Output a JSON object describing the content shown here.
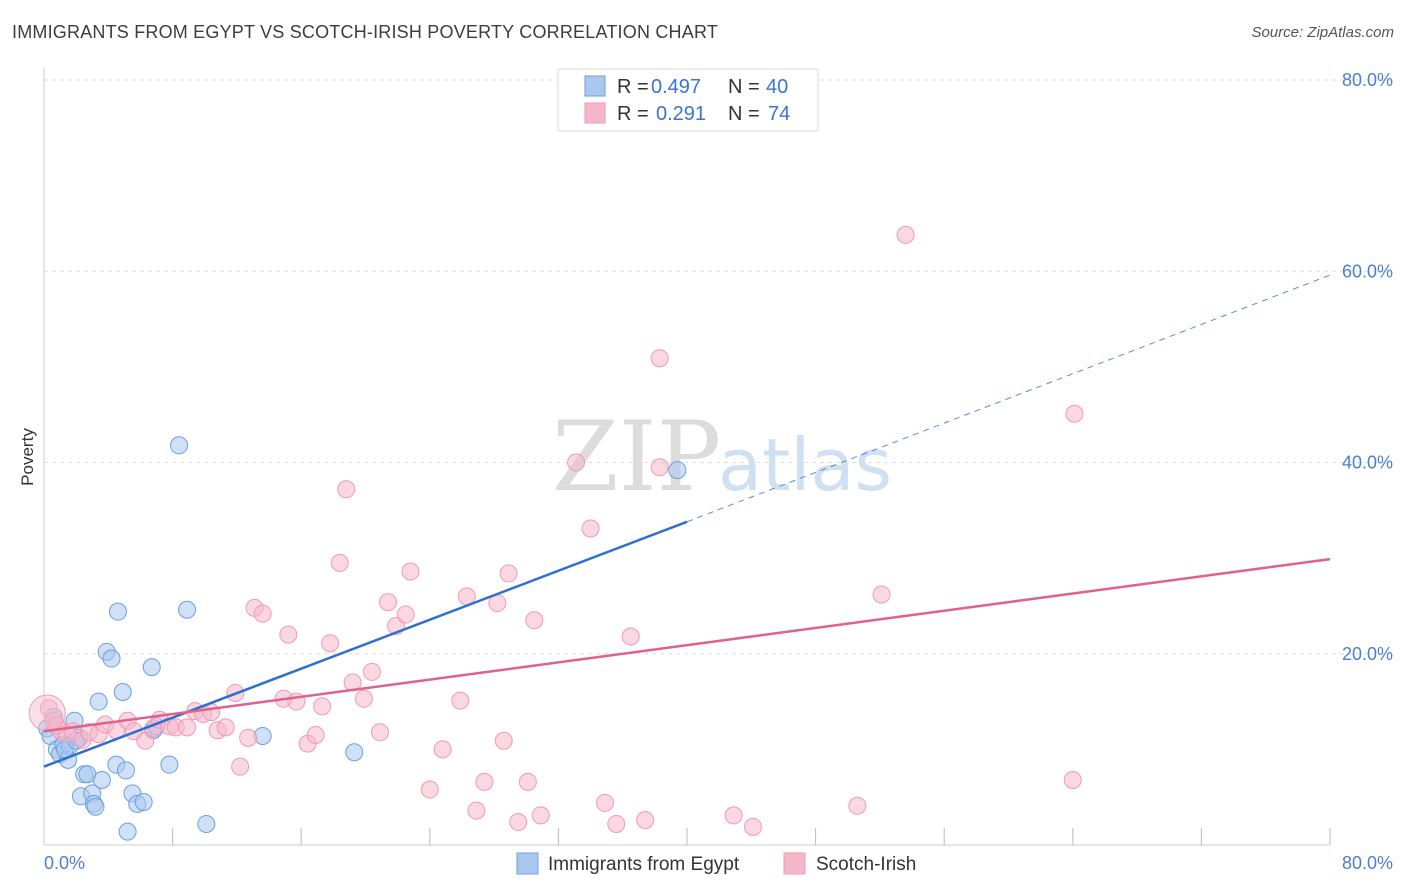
{
  "title": "IMMIGRANTS FROM EGYPT VS SCOTCH-IRISH POVERTY CORRELATION CHART",
  "source": "Source: ZipAtlas.com",
  "watermark": {
    "zip": "ZIP",
    "atlas": "atlas"
  },
  "legend": {
    "rows": [
      {
        "r_label": "R =",
        "r_value": "0.497",
        "n_label": "N =",
        "n_value": "40",
        "color": "#a9c8f0"
      },
      {
        "r_label": "R =",
        "r_value": "0.291",
        "n_label": "N =",
        "n_value": "74",
        "color": "#f7b7cb"
      }
    ]
  },
  "bottom_legend": [
    {
      "label": "Immigrants from Egypt",
      "color": "#a9c8f0"
    },
    {
      "label": "Scotch-Irish",
      "color": "#f7b7cb"
    }
  ],
  "chart_data": {
    "type": "scatter",
    "ylabel": "Poverty",
    "xlim": [
      0,
      80
    ],
    "ylim": [
      0,
      80
    ],
    "x_tick_labels": [
      "0.0%",
      "80.0%"
    ],
    "y_ticks": [
      20,
      40,
      60,
      80
    ],
    "y_tick_labels": [
      "20.0%",
      "40.0%",
      "60.0%",
      "80.0%"
    ],
    "grid": true,
    "series": [
      {
        "name": "Immigrants from Egypt",
        "color": "#6a9fe0",
        "fill": "#a9c8f0",
        "points": [
          [
            0.2,
            12.2
          ],
          [
            0.4,
            11.4
          ],
          [
            0.8,
            10.0
          ],
          [
            1.0,
            9.5
          ],
          [
            1.2,
            10.5
          ],
          [
            1.5,
            8.9
          ],
          [
            1.6,
            10.4
          ],
          [
            1.9,
            13.0
          ],
          [
            2.2,
            11.2
          ],
          [
            2.3,
            5.1
          ],
          [
            2.5,
            7.4
          ],
          [
            2.7,
            7.4
          ],
          [
            3.0,
            5.4
          ],
          [
            3.1,
            4.3
          ],
          [
            3.2,
            4.0
          ],
          [
            3.4,
            15.0
          ],
          [
            3.6,
            6.8
          ],
          [
            3.9,
            20.2
          ],
          [
            4.2,
            19.5
          ],
          [
            4.5,
            8.4
          ],
          [
            4.6,
            24.4
          ],
          [
            4.9,
            16.0
          ],
          [
            5.1,
            7.8
          ],
          [
            5.2,
            1.4
          ],
          [
            5.5,
            5.4
          ],
          [
            5.8,
            4.3
          ],
          [
            6.2,
            4.5
          ],
          [
            6.7,
            18.6
          ],
          [
            6.8,
            12.0
          ],
          [
            7.0,
            12.4
          ],
          [
            7.8,
            8.4
          ],
          [
            8.4,
            41.8
          ],
          [
            8.9,
            24.6
          ],
          [
            10.1,
            2.2
          ],
          [
            13.6,
            11.4
          ],
          [
            19.3,
            9.7
          ],
          [
            39.4,
            39.2
          ],
          [
            0.6,
            13.4
          ],
          [
            1.3,
            10.0
          ],
          [
            2.0,
            10.9
          ]
        ]
      },
      {
        "name": "Scotch-Irish",
        "color": "#ee9ab5",
        "fill": "#f7b7cb",
        "points": [
          [
            0.3,
            14.3
          ],
          [
            0.6,
            13.0
          ],
          [
            1.0,
            12.0
          ],
          [
            1.4,
            11.6
          ],
          [
            1.8,
            11.9
          ],
          [
            2.4,
            11.0
          ],
          [
            2.8,
            11.8
          ],
          [
            3.4,
            11.6
          ],
          [
            3.8,
            12.6
          ],
          [
            4.5,
            12.0
          ],
          [
            5.2,
            13.0
          ],
          [
            5.6,
            11.9
          ],
          [
            6.3,
            10.9
          ],
          [
            6.8,
            12.2
          ],
          [
            7.2,
            13.1
          ],
          [
            7.8,
            12.4
          ],
          [
            8.2,
            12.3
          ],
          [
            8.9,
            12.3
          ],
          [
            9.4,
            14.0
          ],
          [
            9.9,
            13.7
          ],
          [
            10.4,
            13.9
          ],
          [
            10.8,
            12.0
          ],
          [
            11.3,
            12.3
          ],
          [
            11.9,
            15.9
          ],
          [
            12.2,
            8.2
          ],
          [
            12.7,
            11.2
          ],
          [
            13.1,
            24.8
          ],
          [
            13.6,
            24.2
          ],
          [
            14.9,
            15.3
          ],
          [
            15.2,
            22.0
          ],
          [
            15.7,
            15.0
          ],
          [
            16.4,
            10.6
          ],
          [
            16.9,
            11.5
          ],
          [
            17.3,
            14.5
          ],
          [
            17.8,
            21.1
          ],
          [
            18.4,
            29.5
          ],
          [
            18.8,
            37.2
          ],
          [
            19.2,
            17.0
          ],
          [
            19.9,
            15.3
          ],
          [
            20.4,
            18.1
          ],
          [
            20.9,
            11.8
          ],
          [
            21.4,
            25.4
          ],
          [
            21.9,
            22.9
          ],
          [
            22.5,
            24.1
          ],
          [
            22.8,
            28.6
          ],
          [
            24.0,
            5.8
          ],
          [
            24.8,
            10.0
          ],
          [
            25.9,
            15.1
          ],
          [
            26.3,
            26.0
          ],
          [
            26.9,
            3.6
          ],
          [
            27.4,
            6.6
          ],
          [
            28.2,
            25.3
          ],
          [
            28.6,
            10.9
          ],
          [
            28.9,
            28.4
          ],
          [
            29.5,
            2.4
          ],
          [
            30.1,
            6.6
          ],
          [
            30.5,
            23.5
          ],
          [
            30.9,
            3.1
          ],
          [
            33.1,
            40.0
          ],
          [
            34.0,
            33.1
          ],
          [
            34.9,
            4.4
          ],
          [
            35.6,
            2.2
          ],
          [
            36.5,
            21.8
          ],
          [
            37.4,
            2.6
          ],
          [
            38.3,
            39.5
          ],
          [
            38.3,
            50.9
          ],
          [
            42.9,
            3.1
          ],
          [
            44.1,
            1.9
          ],
          [
            50.6,
            4.1
          ],
          [
            52.1,
            26.2
          ],
          [
            53.6,
            63.8
          ],
          [
            64.1,
            45.1
          ],
          [
            64.0,
            6.8
          ],
          [
            0.8,
            12.5
          ]
        ]
      }
    ],
    "trend_lines": [
      {
        "series": "Immigrants from Egypt",
        "color": "#2f6fd0",
        "solid": [
          [
            0,
            8.2
          ],
          [
            40,
            33.8
          ]
        ],
        "dashed": [
          [
            40,
            33.8
          ],
          [
            80,
            59.6
          ]
        ]
      },
      {
        "series": "Scotch-Irish",
        "color": "#e0608e",
        "solid": [
          [
            0,
            11.9
          ],
          [
            80,
            29.9
          ]
        ]
      }
    ]
  }
}
